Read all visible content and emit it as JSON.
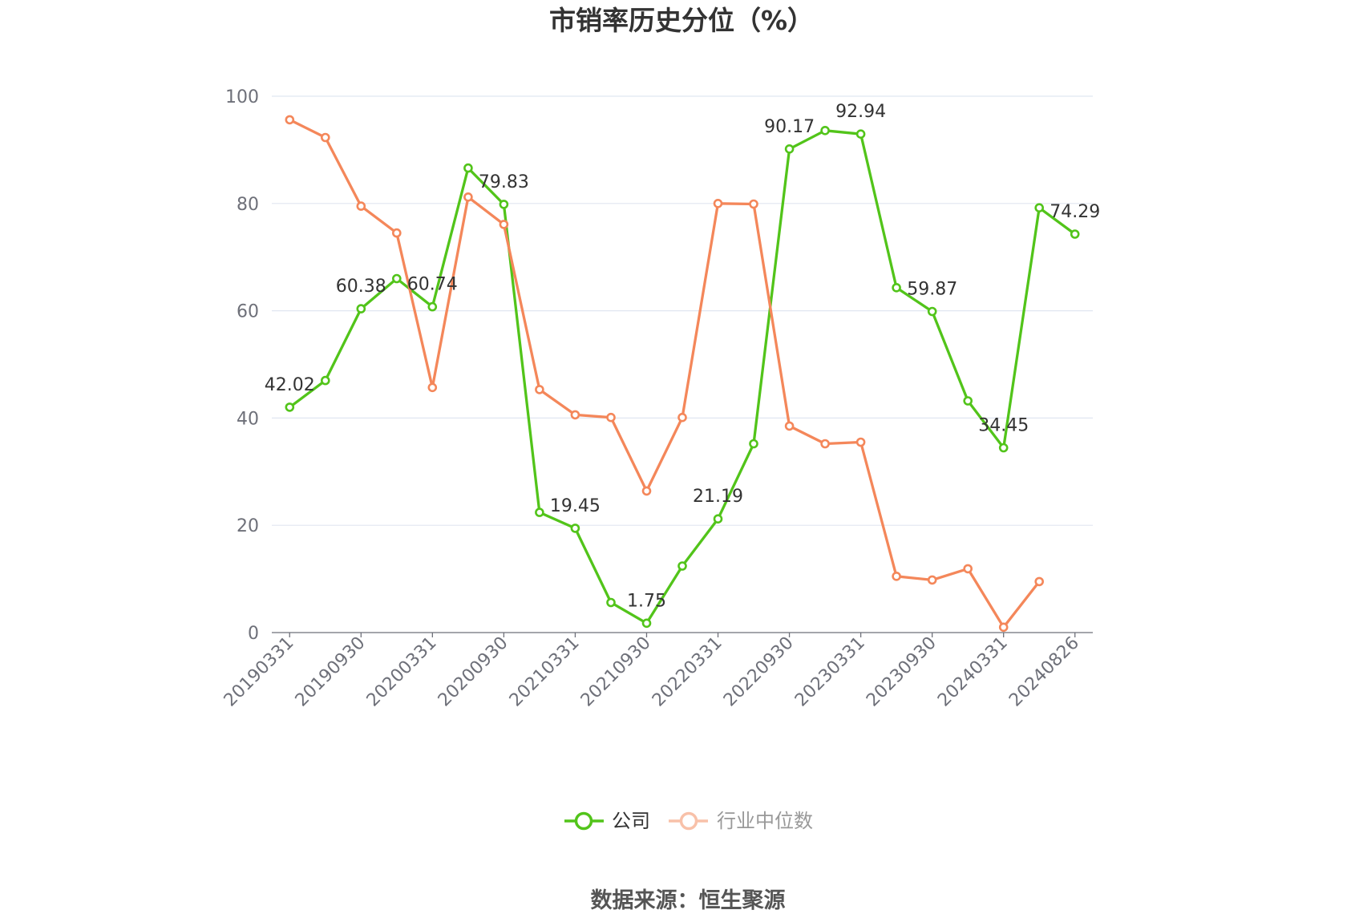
{
  "source": "数据来源：恒生聚源",
  "colors": {
    "company": "#52c41a",
    "industry": "#f4875a",
    "industry_legend": "#f8c1a9",
    "grid": "#e0e6f1",
    "axis": "#6e7079"
  },
  "chart_data": {
    "type": "line",
    "title": "市销率历史分位（%）",
    "categories": [
      "20190331",
      "",
      "20190930",
      "",
      "20200331",
      "",
      "20200930",
      "",
      "20210331",
      "",
      "20210930",
      "",
      "20220331",
      "",
      "20220930",
      "",
      "20230331",
      "",
      "20230930",
      "",
      "20240331",
      "",
      "20240826"
    ],
    "ylim": [
      0,
      100
    ],
    "yticks": [
      0,
      20,
      40,
      60,
      80,
      100
    ],
    "grid": true,
    "legend": "bottom",
    "series": [
      {
        "name": "公司",
        "values": [
          42.02,
          47.0,
          60.38,
          66.0,
          60.74,
          86.6,
          79.83,
          22.4,
          19.45,
          5.6,
          1.75,
          12.4,
          21.19,
          35.2,
          90.17,
          93.6,
          92.94,
          64.3,
          59.87,
          43.2,
          34.45,
          79.2,
          74.29
        ],
        "data_labels": [
          "42.02",
          null,
          "60.38",
          null,
          "60.74",
          null,
          "79.83",
          null,
          "19.45",
          null,
          "1.75",
          null,
          "21.19",
          null,
          "90.17",
          null,
          "92.94",
          null,
          "59.87",
          null,
          "34.45",
          null,
          "74.29"
        ]
      },
      {
        "name": "行业中位数",
        "values": [
          95.6,
          92.3,
          79.5,
          74.5,
          45.7,
          81.2,
          76.1,
          45.3,
          40.6,
          40.1,
          26.4,
          40.1,
          80.0,
          79.9,
          38.5,
          35.2,
          35.5,
          10.5,
          9.8,
          11.9,
          1.0,
          9.5,
          null
        ]
      }
    ]
  }
}
